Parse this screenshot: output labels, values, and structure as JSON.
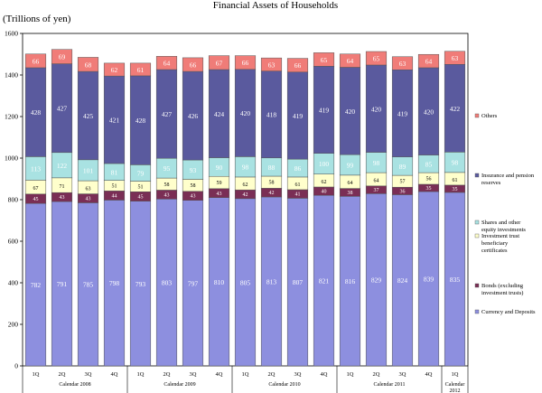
{
  "chart_data": {
    "type": "bar",
    "stacked": true,
    "title": "Financial Assets of Households",
    "ylabel": "(Trillions of yen)",
    "ylim": [
      0,
      1600
    ],
    "yticks": [
      0,
      200,
      400,
      600,
      800,
      1000,
      1200,
      1400,
      1600
    ],
    "quarters": [
      "1Q",
      "2Q",
      "3Q",
      "4Q",
      "1Q",
      "2Q",
      "3Q",
      "4Q",
      "1Q",
      "2Q",
      "3Q",
      "4Q",
      "1Q",
      "2Q",
      "3Q",
      "4Q",
      "1Q"
    ],
    "years": [
      {
        "label": "Calendar 2008",
        "start": 0,
        "count": 4
      },
      {
        "label": "Calendar 2009",
        "start": 4,
        "count": 4
      },
      {
        "label": "Calendar 2010",
        "start": 8,
        "count": 4
      },
      {
        "label": "Calendar 2011",
        "start": 12,
        "count": 4
      },
      {
        "label": "Calendar\n2012",
        "start": 16,
        "count": 1
      }
    ],
    "series": [
      {
        "name": "Currency and Deposits",
        "color": "#8d8fdf",
        "values": [
          782,
          791,
          785,
          798,
          793,
          803,
          797,
          810,
          805,
          813,
          807,
          821,
          816,
          829,
          824,
          839,
          835
        ]
      },
      {
        "name": "Bonds (excluding investment trusts)",
        "color": "#7a2e55",
        "values": [
          45,
          43,
          43,
          44,
          45,
          43,
          43,
          43,
          42,
          42,
          41,
          40,
          38,
          37,
          36,
          35,
          35
        ]
      },
      {
        "name": "Investment trust beneficiary certificates",
        "color": "#ffffcc",
        "values": [
          67,
          71,
          63,
          51,
          51,
          58,
          58,
          59,
          62,
          58,
          61,
          62,
          64,
          64,
          57,
          56,
          61
        ]
      },
      {
        "name": "Shares and other equity investments",
        "color": "#a9e2e2",
        "values": [
          113,
          122,
          101,
          81,
          79,
          95,
          93,
          90,
          98,
          88,
          86,
          100,
          99,
          98,
          89,
          85,
          98
        ]
      },
      {
        "name": "Insurance and pension reserves",
        "color": "#5a5a9e",
        "values": [
          428,
          427,
          425,
          421,
          428,
          427,
          426,
          424,
          420,
          418,
          419,
          419,
          420,
          420,
          419,
          420,
          422
        ]
      },
      {
        "name": "Others",
        "color": "#f07c78",
        "values": [
          66,
          69,
          68,
          62,
          61,
          64,
          66,
          67,
          66,
          63,
          66,
          65,
          64,
          65,
          63,
          64,
          63
        ]
      }
    ],
    "legend_position": "right"
  }
}
